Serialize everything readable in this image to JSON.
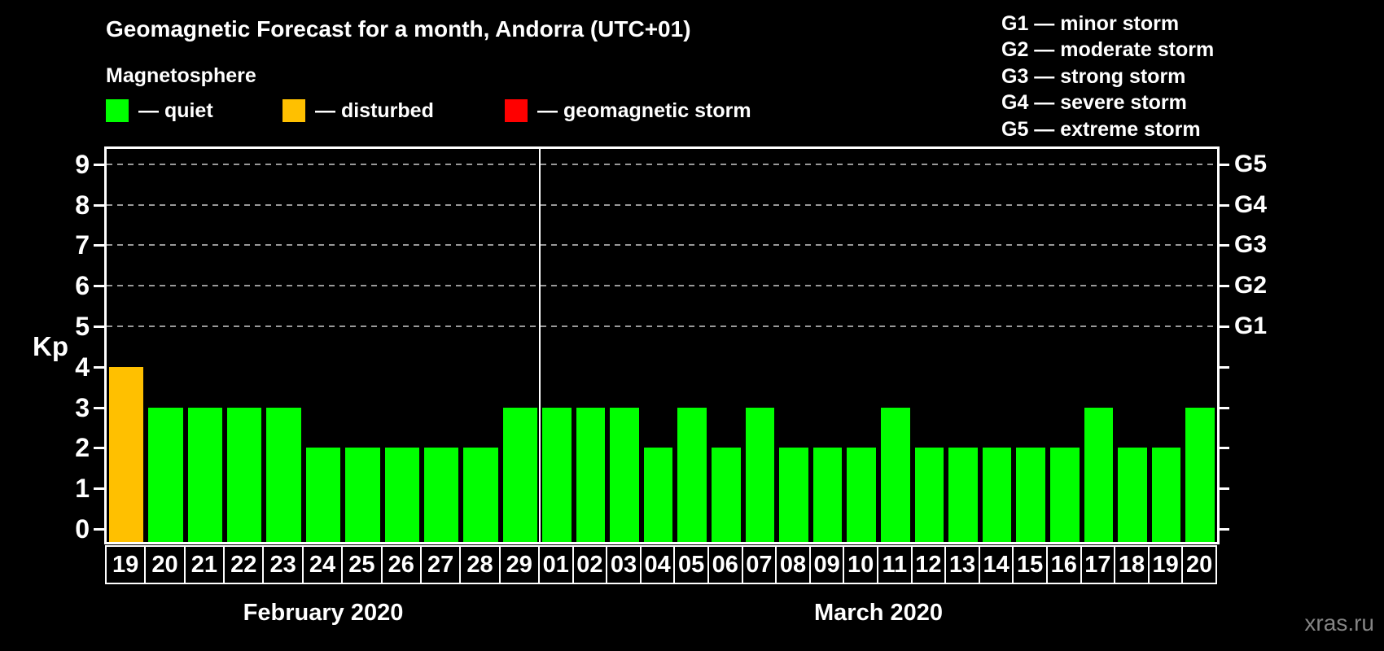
{
  "title": "Geomagnetic Forecast for a month, Andorra (UTC+01)",
  "subtitle": "Magnetosphere",
  "watermark": "xras.ru",
  "colors": {
    "quiet": "#00ff00",
    "disturbed": "#ffc000",
    "storm": "#ff0000",
    "background": "#000000",
    "text": "#ffffff",
    "grid": "#999999",
    "watermark_text": "#858585"
  },
  "magnetosphere_legend": [
    {
      "status": "quiet",
      "label": "— quiet"
    },
    {
      "status": "disturbed",
      "label": "— disturbed"
    },
    {
      "status": "storm",
      "label": "— geomagnetic storm"
    }
  ],
  "storm_scale_legend": [
    "G1 — minor storm",
    "G2 — moderate storm",
    "G3 — strong storm",
    "G4 — severe storm",
    "G5 — extreme storm"
  ],
  "chart_data": {
    "type": "bar",
    "title": "Geomagnetic Forecast for a month, Andorra (UTC+01)",
    "ylabel": "Kp",
    "ylim": [
      0,
      9
    ],
    "yticks": [
      0,
      1,
      2,
      3,
      4,
      5,
      6,
      7,
      8,
      9
    ],
    "grid": true,
    "grid_levels": [
      5,
      6,
      7,
      8,
      9
    ],
    "legend_position": "top",
    "right_axis_labels": [
      {
        "kp": 5,
        "label": "G1"
      },
      {
        "kp": 6,
        "label": "G2"
      },
      {
        "kp": 7,
        "label": "G3"
      },
      {
        "kp": 8,
        "label": "G4"
      },
      {
        "kp": 9,
        "label": "G5"
      }
    ],
    "months": [
      {
        "label": "February 2020",
        "days": [
          {
            "day": "19",
            "kp": 4,
            "status": "disturbed"
          },
          {
            "day": "20",
            "kp": 3,
            "status": "quiet"
          },
          {
            "day": "21",
            "kp": 3,
            "status": "quiet"
          },
          {
            "day": "22",
            "kp": 3,
            "status": "quiet"
          },
          {
            "day": "23",
            "kp": 3,
            "status": "quiet"
          },
          {
            "day": "24",
            "kp": 2,
            "status": "quiet"
          },
          {
            "day": "25",
            "kp": 2,
            "status": "quiet"
          },
          {
            "day": "26",
            "kp": 2,
            "status": "quiet"
          },
          {
            "day": "27",
            "kp": 2,
            "status": "quiet"
          },
          {
            "day": "28",
            "kp": 2,
            "status": "quiet"
          },
          {
            "day": "29",
            "kp": 3,
            "status": "quiet"
          }
        ]
      },
      {
        "label": "March 2020",
        "days": [
          {
            "day": "01",
            "kp": 3,
            "status": "quiet"
          },
          {
            "day": "02",
            "kp": 3,
            "status": "quiet"
          },
          {
            "day": "03",
            "kp": 3,
            "status": "quiet"
          },
          {
            "day": "04",
            "kp": 2,
            "status": "quiet"
          },
          {
            "day": "05",
            "kp": 3,
            "status": "quiet"
          },
          {
            "day": "06",
            "kp": 2,
            "status": "quiet"
          },
          {
            "day": "07",
            "kp": 3,
            "status": "quiet"
          },
          {
            "day": "08",
            "kp": 2,
            "status": "quiet"
          },
          {
            "day": "09",
            "kp": 2,
            "status": "quiet"
          },
          {
            "day": "10",
            "kp": 2,
            "status": "quiet"
          },
          {
            "day": "11",
            "kp": 3,
            "status": "quiet"
          },
          {
            "day": "12",
            "kp": 2,
            "status": "quiet"
          },
          {
            "day": "13",
            "kp": 2,
            "status": "quiet"
          },
          {
            "day": "14",
            "kp": 2,
            "status": "quiet"
          },
          {
            "day": "15",
            "kp": 2,
            "status": "quiet"
          },
          {
            "day": "16",
            "kp": 2,
            "status": "quiet"
          },
          {
            "day": "17",
            "kp": 3,
            "status": "quiet"
          },
          {
            "day": "18",
            "kp": 2,
            "status": "quiet"
          },
          {
            "day": "19",
            "kp": 2,
            "status": "quiet"
          },
          {
            "day": "20",
            "kp": 3,
            "status": "quiet"
          }
        ]
      }
    ]
  }
}
